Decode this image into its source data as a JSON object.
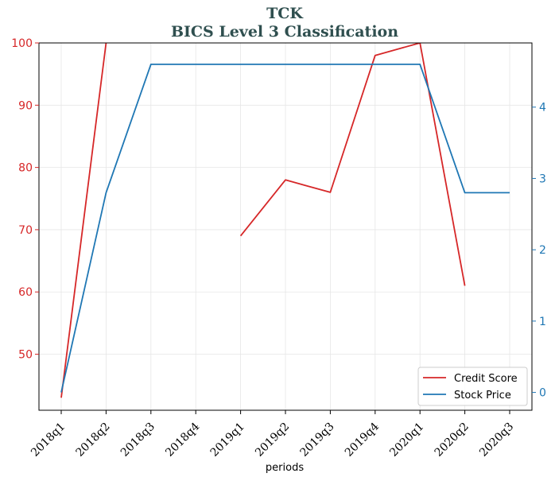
{
  "chart_data": {
    "type": "line",
    "title": "TCK",
    "subtitle": "BICS Level 3 Classification",
    "xlabel": "periods",
    "categories": [
      "2018q1",
      "2018q2",
      "2018q3",
      "2018q4",
      "2019q1",
      "2019q2",
      "2019q3",
      "2019q4",
      "2020q1",
      "2020q2",
      "2020q3"
    ],
    "left_axis": {
      "ylim": [
        41,
        100
      ],
      "ticks": [
        50,
        60,
        70,
        80,
        90,
        100
      ],
      "color": "#d62728"
    },
    "right_axis": {
      "ylim": [
        -0.25,
        4.9
      ],
      "ticks": [
        0,
        1,
        2,
        3,
        4
      ],
      "color": "#1f77b4"
    },
    "series": [
      {
        "name": "Credit Score",
        "axis": "left",
        "color": "#d62728",
        "values": [
          43,
          100,
          null,
          null,
          69,
          78,
          76,
          98,
          100,
          61,
          null
        ]
      },
      {
        "name": "Stock Price",
        "axis": "right",
        "color": "#1f77b4",
        "values": [
          0,
          2.8,
          4.6,
          4.6,
          4.6,
          4.6,
          4.6,
          4.6,
          4.6,
          2.8,
          2.8
        ]
      }
    ],
    "grid": true,
    "legend_position": "bottom-right"
  }
}
